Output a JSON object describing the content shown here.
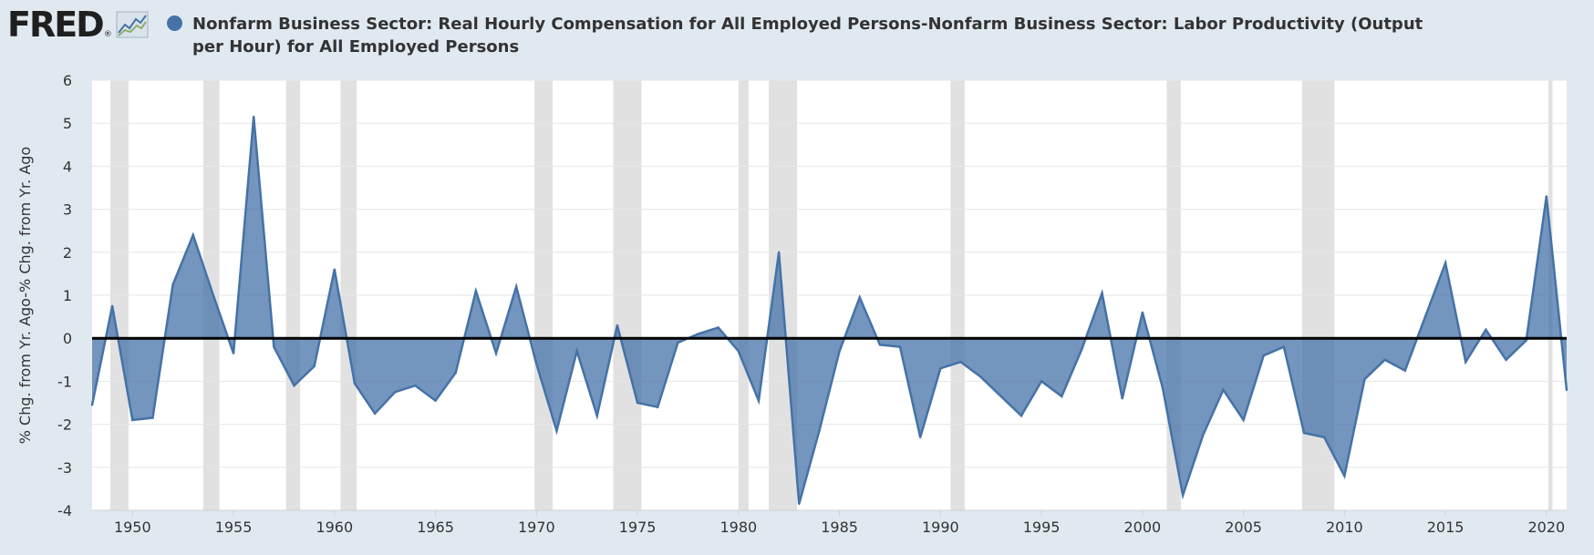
{
  "header": {
    "logo_text": "FRED",
    "logo_mark": "®",
    "legend_label": "Nonfarm Business Sector: Real Hourly Compensation for All Employed Persons-Nonfarm Business Sector: Labor Productivity (Output per Hour) for All Employed Persons"
  },
  "chart_data": {
    "type": "area",
    "title": "",
    "xlabel": "",
    "ylabel": "% Chg. from Yr. Ago-% Chg. from Yr. Ago",
    "xlim": [
      1948,
      2021
    ],
    "ylim": [
      -4,
      6
    ],
    "y_ticks": [
      6,
      5,
      4,
      3,
      2,
      1,
      0,
      -1,
      -2,
      -3,
      -4
    ],
    "x_ticks": [
      1950,
      1955,
      1960,
      1965,
      1970,
      1975,
      1980,
      1985,
      1990,
      1995,
      2000,
      2005,
      2010,
      2015,
      2020
    ],
    "grid": true,
    "legend_position": "top",
    "colors": {
      "series": "#4572a7",
      "fill": "#4572a7",
      "zero_line": "#000000",
      "recession": "#e1e1e1",
      "plot_bg": "#ffffff",
      "page_bg": "#e1e9f0"
    },
    "recessions": [
      [
        1948.9,
        1949.8
      ],
      [
        1953.5,
        1954.3
      ],
      [
        1957.6,
        1958.3
      ],
      [
        1960.3,
        1961.1
      ],
      [
        1969.9,
        1970.8
      ],
      [
        1973.8,
        1975.2
      ],
      [
        1980.0,
        1980.5
      ],
      [
        1981.5,
        1982.9
      ],
      [
        1990.5,
        1991.2
      ],
      [
        2001.2,
        2001.9
      ],
      [
        2007.9,
        2009.5
      ],
      [
        2020.1,
        2020.3
      ]
    ],
    "series": [
      {
        "name": "",
        "x": [
          1948,
          1949,
          1950,
          1951,
          1952,
          1953,
          1954,
          1955,
          1956,
          1957,
          1958,
          1959,
          1960,
          1961,
          1962,
          1963,
          1964,
          1965,
          1966,
          1967,
          1968,
          1969,
          1970,
          1971,
          1972,
          1973,
          1974,
          1975,
          1976,
          1977,
          1978,
          1979,
          1980,
          1981,
          1982,
          1983,
          1984,
          1985,
          1986,
          1987,
          1988,
          1989,
          1990,
          1991,
          1992,
          1993,
          1994,
          1995,
          1996,
          1997,
          1998,
          1999,
          2000,
          2001,
          2002,
          2003,
          2004,
          2005,
          2006,
          2007,
          2008,
          2009,
          2010,
          2011,
          2012,
          2013,
          2014,
          2015,
          2016,
          2017,
          2018,
          2019,
          2020,
          2021
        ],
        "values": [
          -1.55,
          0.75,
          -1.9,
          -1.85,
          1.25,
          2.4,
          1.0,
          -0.35,
          5.15,
          -0.2,
          -1.1,
          -0.65,
          1.6,
          -1.05,
          -1.75,
          -1.25,
          -1.1,
          -1.45,
          -0.8,
          1.1,
          -0.35,
          1.2,
          -0.6,
          -2.15,
          -0.3,
          -1.8,
          0.3,
          -1.5,
          -1.6,
          -0.1,
          0.1,
          0.25,
          -0.3,
          -1.45,
          2.0,
          -3.85,
          -2.15,
          -0.3,
          0.95,
          -0.15,
          -0.2,
          -2.3,
          -0.7,
          -0.55,
          -0.9,
          -1.35,
          -1.8,
          -1.0,
          -1.35,
          -0.25,
          1.05,
          -1.4,
          0.6,
          -1.15,
          -3.65,
          -2.25,
          -1.2,
          -1.9,
          -0.4,
          -0.2,
          -2.2,
          -2.3,
          -3.2,
          -0.95,
          -0.5,
          -0.75,
          0.5,
          1.75,
          -0.55,
          0.2,
          -0.5,
          -0.05,
          3.3,
          -1.2
        ]
      }
    ]
  }
}
